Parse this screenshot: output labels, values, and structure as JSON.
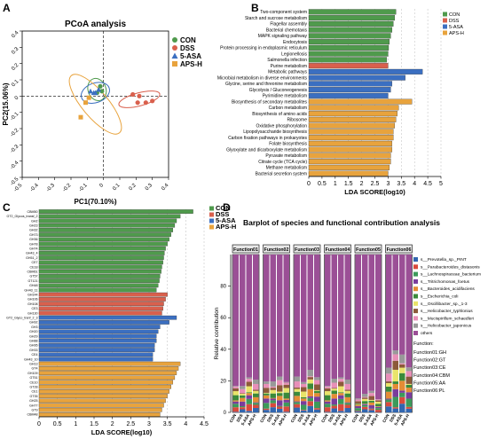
{
  "panels": {
    "a": "A",
    "b": "B",
    "c": "C",
    "d": "D"
  },
  "colors": {
    "CON": "#4f9a4c",
    "DSS": "#d9604d",
    "5-ASA": "#3b6fc1",
    "APS-H": "#e8a33d"
  },
  "chart_data": [
    {
      "type": "scatter",
      "title": "PCoA analysis",
      "xlabel": "PC1(70.10%)",
      "ylabel": "PC2(15.06%)",
      "xlim": [
        -0.5,
        0.4
      ],
      "ylim": [
        -0.5,
        0.4
      ],
      "xticks": [
        "-0.5",
        "-0.4",
        "-0.3",
        "-0.2",
        "-0.1",
        "0",
        "0.1",
        "0.2",
        "0.3",
        "0.4"
      ],
      "yticks": [
        "-0.5",
        "-0.4",
        "-0.3",
        "-0.2",
        "-0.1",
        "0",
        "0.1",
        "0.2",
        "0.3",
        "0.4"
      ],
      "legend": [
        "CON",
        "DSS",
        "5-ASA",
        "APS-H"
      ],
      "series": [
        {
          "name": "CON",
          "marker": "circle",
          "points": [
            [
              -0.02,
              0.06
            ],
            [
              -0.04,
              0.02
            ],
            [
              -0.01,
              0.03
            ]
          ]
        },
        {
          "name": "DSS",
          "marker": "circle",
          "points": [
            [
              0.22,
              0.0
            ],
            [
              0.21,
              -0.04
            ],
            [
              0.26,
              -0.04
            ],
            [
              0.18,
              0.01
            ],
            [
              0.3,
              -0.03
            ]
          ]
        },
        {
          "name": "5-ASA",
          "marker": "triangle",
          "points": [
            [
              -0.08,
              0.03
            ],
            [
              -0.06,
              0.02
            ],
            [
              -0.03,
              0.04
            ],
            [
              -0.05,
              0.02
            ]
          ]
        },
        {
          "name": "APS-H",
          "marker": "square",
          "points": [
            [
              -0.14,
              -0.13
            ],
            [
              -0.11,
              -0.04
            ],
            [
              -0.09,
              -0.01
            ]
          ]
        }
      ],
      "ellipses": [
        {
          "name": "CON",
          "center": [
            -0.04,
            0.04
          ],
          "rx": 0.055,
          "ry": 0.07,
          "angle": -20
        },
        {
          "name": "DSS",
          "center": [
            0.22,
            -0.02
          ],
          "rx": 0.13,
          "ry": 0.04,
          "angle": -15
        },
        {
          "name": "5-ASA",
          "center": [
            -0.05,
            0.02
          ],
          "rx": 0.09,
          "ry": 0.06,
          "angle": -20
        },
        {
          "name": "APS-H",
          "center": [
            -0.05,
            -0.05
          ],
          "rx": 0.23,
          "ry": 0.08,
          "angle": 50
        }
      ]
    },
    {
      "type": "bar",
      "orientation": "horizontal",
      "xlabel": "LDA SCORE(log10)",
      "xlim": [
        0,
        5
      ],
      "xticks": [
        "0",
        "0.5",
        "1",
        "1.5",
        "2",
        "2.5",
        "3",
        "3.5",
        "4",
        "4.5",
        "5"
      ],
      "legend": [
        "CON",
        "DSS",
        "5-ASA",
        "APS-H"
      ],
      "bars": [
        {
          "label": "Two-component system",
          "group": "CON",
          "value": 3.3
        },
        {
          "label": "Starch and sucrose metabolism",
          "group": "CON",
          "value": 3.25
        },
        {
          "label": "Flagellar assembly",
          "group": "CON",
          "value": 3.2
        },
        {
          "label": "Bacterial chemotaxis",
          "group": "CON",
          "value": 3.15
        },
        {
          "label": "MAPK signaling pathway",
          "group": "CON",
          "value": 3.1
        },
        {
          "label": "Endocytosis",
          "group": "CON",
          "value": 3.05
        },
        {
          "label": "Protein processing in endoplasmic reticulum",
          "group": "CON",
          "value": 3.02
        },
        {
          "label": "Legionellosis",
          "group": "CON",
          "value": 3.0
        },
        {
          "label": "Salmonella infection",
          "group": "CON",
          "value": 2.95
        },
        {
          "label": "Purine metabolism",
          "group": "DSS",
          "value": 3.0
        },
        {
          "label": "Metabolic pathways",
          "group": "5-ASA",
          "value": 4.3
        },
        {
          "label": "Microbial metabolism in diverse environments",
          "group": "5-ASA",
          "value": 3.65
        },
        {
          "label": "Glycine, serine and threonine metabolism",
          "group": "5-ASA",
          "value": 3.15
        },
        {
          "label": "Glycolysis / Gluconeogenesis",
          "group": "5-ASA",
          "value": 3.1
        },
        {
          "label": "Pyrimidine metabolism",
          "group": "5-ASA",
          "value": 3.0
        },
        {
          "label": "Biosynthesis of secondary metabolites",
          "group": "APS-H",
          "value": 3.9
        },
        {
          "label": "Carbon metabolism",
          "group": "APS-H",
          "value": 3.4
        },
        {
          "label": "Biosynthesis of amino acids",
          "group": "APS-H",
          "value": 3.35
        },
        {
          "label": "Ribosome",
          "group": "APS-H",
          "value": 3.3
        },
        {
          "label": "Oxidative phosphorylation",
          "group": "APS-H",
          "value": 3.25
        },
        {
          "label": "Lipopolysaccharide biosynthesis",
          "group": "APS-H",
          "value": 3.2
        },
        {
          "label": "Carbon fixation pathways in prokaryotes",
          "group": "APS-H",
          "value": 3.2
        },
        {
          "label": "Folate biosynthesis",
          "group": "APS-H",
          "value": 3.15
        },
        {
          "label": "Glyoxylate and dicarboxylate metabolism",
          "group": "APS-H",
          "value": 3.15
        },
        {
          "label": "Pyruvate metabolism",
          "group": "APS-H",
          "value": 3.1
        },
        {
          "label": "Citrate cycle (TCA cycle)",
          "group": "APS-H",
          "value": 3.1
        },
        {
          "label": "Methane metabolism",
          "group": "APS-H",
          "value": 3.05
        },
        {
          "label": "Bacterial secretion system",
          "group": "APS-H",
          "value": 3.0
        }
      ]
    },
    {
      "type": "bar",
      "orientation": "horizontal",
      "xlabel": "LDA SCORE(log10)",
      "xlim": [
        0,
        4.5
      ],
      "xticks": [
        "0",
        "0.5",
        "1",
        "1.5",
        "2",
        "2.5",
        "3",
        "3.5",
        "4",
        "4.5"
      ],
      "legend": [
        "CON",
        "DSS",
        "5-ASA",
        "APS-H"
      ],
      "bars": [
        {
          "label": "CBM50",
          "group": "CON",
          "value": 4.2
        },
        {
          "label": "GT2_Glycos_transf_2",
          "group": "CON",
          "value": 3.85
        },
        {
          "label": "GH2",
          "group": "CON",
          "value": 3.75
        },
        {
          "label": "GH23",
          "group": "CON",
          "value": 3.7
        },
        {
          "label": "GH32",
          "group": "CON",
          "value": 3.65
        },
        {
          "label": "GH73",
          "group": "CON",
          "value": 3.6
        },
        {
          "label": "GH36",
          "group": "CON",
          "value": 3.55
        },
        {
          "label": "GH78",
          "group": "CON",
          "value": 3.5
        },
        {
          "label": "GH74",
          "group": "CON",
          "value": 3.45
        },
        {
          "label": "GH43_4",
          "group": "CON",
          "value": 3.42
        },
        {
          "label": "GH51_2",
          "group": "CON",
          "value": 3.4
        },
        {
          "label": "CE7",
          "group": "CON",
          "value": 3.38
        },
        {
          "label": "CE18",
          "group": "CON",
          "value": 3.35
        },
        {
          "label": "CBM61",
          "group": "CON",
          "value": 3.33
        },
        {
          "label": "GT57",
          "group": "CON",
          "value": 3.3
        },
        {
          "label": "GT121",
          "group": "CON",
          "value": 3.28
        },
        {
          "label": "GH48",
          "group": "CON",
          "value": 3.25
        },
        {
          "label": "GH43_11",
          "group": "CON",
          "value": 3.2
        },
        {
          "label": "GH144",
          "group": "DSS",
          "value": 3.5
        },
        {
          "label": "GH106",
          "group": "DSS",
          "value": 3.45
        },
        {
          "label": "GH108",
          "group": "DSS",
          "value": 3.4
        },
        {
          "label": "CE3",
          "group": "DSS",
          "value": 3.38
        },
        {
          "label": "GH130",
          "group": "DSS",
          "value": 3.35
        },
        {
          "label": "GT2_Glyco_tranf_2_3",
          "group": "5-ASA",
          "value": 3.75
        },
        {
          "label": "GH92",
          "group": "5-ASA",
          "value": 3.55
        },
        {
          "label": "GH3",
          "group": "5-ASA",
          "value": 3.3
        },
        {
          "label": "GH20",
          "group": "5-ASA",
          "value": 3.25
        },
        {
          "label": "GH29",
          "group": "5-ASA",
          "value": 3.2
        },
        {
          "label": "GH88",
          "group": "5-ASA",
          "value": 3.2
        },
        {
          "label": "GH95",
          "group": "5-ASA",
          "value": 3.15
        },
        {
          "label": "GH33",
          "group": "5-ASA",
          "value": 3.15
        },
        {
          "label": "CE4",
          "group": "5-ASA",
          "value": 3.1
        },
        {
          "label": "GH43_10",
          "group": "5-ASA",
          "value": 3.1
        },
        {
          "label": "GH13",
          "group": "APS-H",
          "value": 3.85
        },
        {
          "label": "GT4",
          "group": "APS-H",
          "value": 3.8
        },
        {
          "label": "GH109",
          "group": "APS-H",
          "value": 3.75
        },
        {
          "label": "GT51",
          "group": "APS-H",
          "value": 3.7
        },
        {
          "label": "CE10",
          "group": "APS-H",
          "value": 3.65
        },
        {
          "label": "GT28",
          "group": "APS-H",
          "value": 3.6
        },
        {
          "label": "CE1",
          "group": "APS-H",
          "value": 3.55
        },
        {
          "label": "GT35",
          "group": "APS-H",
          "value": 3.5
        },
        {
          "label": "GH25",
          "group": "APS-H",
          "value": 3.45
        },
        {
          "label": "GH77",
          "group": "APS-H",
          "value": 3.4
        },
        {
          "label": "GT9",
          "group": "APS-H",
          "value": 3.35
        },
        {
          "label": "CBM48",
          "group": "APS-H",
          "value": 3.3
        }
      ]
    },
    {
      "type": "bar",
      "stacked": true,
      "title": "Barplot of species and functional contribution analysis",
      "ylabel": "Relative contribution",
      "ylim": [
        0,
        100
      ],
      "yticks": [
        "0",
        "20",
        "40",
        "60",
        "80"
      ],
      "facets": [
        "Function01",
        "Function02",
        "Function03",
        "Function04",
        "Function05",
        "Function06"
      ],
      "categories": [
        "CON",
        "DSS",
        "5-ASA",
        "APS-H"
      ],
      "species": [
        {
          "name": "s__Prevotella_sp._PINT",
          "color": "#3166b0"
        },
        {
          "name": "s__Parabacteroides_distasonis",
          "color": "#d94a3c"
        },
        {
          "name": "s__Lachnospiraceae_bacterium",
          "color": "#3c9a5a"
        },
        {
          "name": "s__Tritrichomonas_foetus",
          "color": "#7a3c9c"
        },
        {
          "name": "s__Bacteroides_acidifaciens",
          "color": "#e58c35"
        },
        {
          "name": "s__Escherichia_coli",
          "color": "#3a8a3a"
        },
        {
          "name": "s__Oscillibacter_sp._1-3",
          "color": "#e9e46a"
        },
        {
          "name": "s__Helicobacter_typhlonius",
          "color": "#8c5a3a"
        },
        {
          "name": "s__Mucispirillum_schaedleri",
          "color": "#e88fb8"
        },
        {
          "name": "s__Helicobacter_japonicus",
          "color": "#999999"
        },
        {
          "name": "others",
          "color": "#9b4f96"
        }
      ],
      "functions_title": "Function:",
      "functions": [
        "Function01:GH",
        "Function02:GT",
        "Function03:CE",
        "Function04:CBM",
        "Function05:AA",
        "Function06:PL"
      ],
      "others_share": [
        [
          80,
          82,
          74,
          78
        ],
        [
          78,
          80,
          75,
          77
        ],
        [
          76,
          78,
          72,
          75
        ],
        [
          80,
          77,
          74,
          78
        ],
        [
          90,
          88,
          85,
          90
        ],
        [
          70,
          55,
          62,
          68
        ]
      ]
    }
  ]
}
